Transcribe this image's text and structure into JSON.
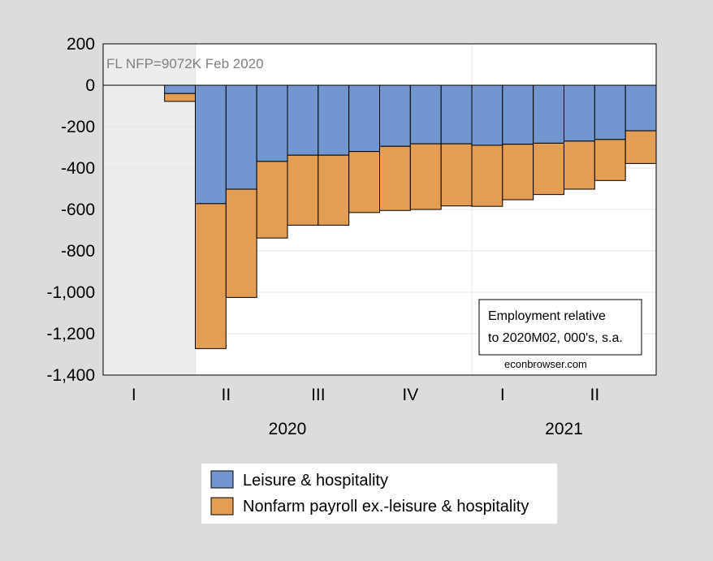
{
  "chart_data": {
    "type": "bar",
    "stacked": true,
    "categories": [
      "2020-01",
      "2020-02",
      "2020-03",
      "2020-04",
      "2020-05",
      "2020-06",
      "2020-07",
      "2020-08",
      "2020-09",
      "2020-10",
      "2020-11",
      "2020-12",
      "2021-01",
      "2021-02",
      "2021-03",
      "2021-04",
      "2021-05",
      "2021-06"
    ],
    "series": [
      {
        "name": "Leisure & hospitality",
        "color": "#7297d0",
        "values": [
          0,
          0,
          -40,
          -572,
          -502,
          -368,
          -338,
          -338,
          -320,
          -295,
          -283,
          -283,
          -290,
          -285,
          -280,
          -270,
          -262,
          -220
        ]
      },
      {
        "name": "Nonfarm payroll ex.-leisure & hospitality",
        "color": "#e39e54",
        "values": [
          0,
          0,
          -38,
          -700,
          -523,
          -370,
          -338,
          -338,
          -295,
          -310,
          -317,
          -300,
          -295,
          -268,
          -248,
          -232,
          -198,
          -158
        ]
      }
    ],
    "ylim": [
      -1400,
      200
    ],
    "yticks": [
      "200",
      "0",
      "-200",
      "-400",
      "-600",
      "-800",
      "-1,000",
      "-1,200",
      "-1,400"
    ],
    "ytick_values": [
      200,
      0,
      -200,
      -400,
      -600,
      -800,
      -1000,
      -1200,
      -1400
    ],
    "quarter_labels": [
      "I",
      "II",
      "III",
      "IV",
      "I",
      "II"
    ],
    "year_labels": [
      "2020",
      "2021"
    ],
    "shaded_region": [
      "2020-01",
      "2020-03"
    ],
    "grid": true,
    "legend_placement": "bottom-center",
    "annotations": {
      "note": "FL NFP=9072K Feb 2020",
      "box_line1": "Employment relative",
      "box_line2": "to 2020M02, 000's, s.a.",
      "source": "econbrowser.com"
    }
  }
}
